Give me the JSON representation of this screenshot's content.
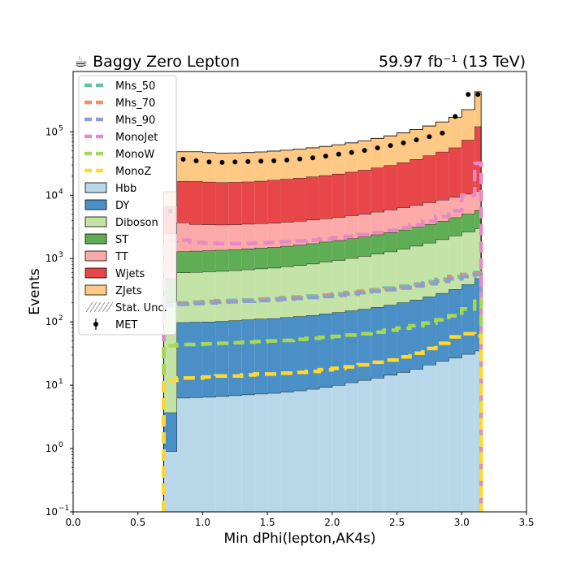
{
  "chart_data": {
    "type": "histogram-stacked",
    "title_left": "☕ Baggy Zero Lepton",
    "title_right": "59.97 fb⁻¹ (13 TeV)",
    "xlabel": "Min dPhi(lepton,AK4s)",
    "ylabel": "Events",
    "xlim": [
      0.0,
      3.5
    ],
    "ylim": [
      0.1,
      900000
    ],
    "yscale": "log",
    "x_ticks": [
      "0.0",
      "0.5",
      "1.0",
      "1.5",
      "2.0",
      "2.5",
      "3.0",
      "3.5"
    ],
    "y_ticks": [
      "10",
      "10",
      "10",
      "10",
      "10",
      "10",
      "10"
    ],
    "y_tick_exponents": [
      "−1",
      "0",
      "1",
      "2",
      "3",
      "4",
      "5"
    ],
    "bin_edges": [
      0.7,
      0.8,
      0.9,
      1.0,
      1.1,
      1.2,
      1.3,
      1.4,
      1.5,
      1.6,
      1.7,
      1.8,
      1.9,
      2.0,
      2.1,
      2.2,
      2.3,
      2.4,
      2.5,
      2.6,
      2.7,
      2.8,
      2.9,
      3.0,
      3.1,
      3.15
    ],
    "stack": [
      {
        "name": "Hbb",
        "color": "#b8d8ea",
        "values": [
          0.9,
          6.3,
          6.4,
          6.5,
          6.7,
          6.9,
          7.1,
          7.3,
          7.5,
          7.8,
          8.2,
          8.7,
          9.3,
          10,
          11,
          12,
          13,
          14.5,
          16,
          18,
          21,
          24,
          27,
          31,
          35
        ]
      },
      {
        "name": "DY",
        "color": "#4a8fc6",
        "values": [
          2.8,
          92,
          93,
          94,
          96,
          98,
          101,
          104,
          106,
          110,
          114,
          118,
          125,
          131,
          139,
          147,
          158,
          170,
          186,
          204,
          228,
          260,
          300,
          360,
          450
        ]
      },
      {
        "name": "Diboson",
        "color": "#c3e4a6",
        "values": [
          200,
          500,
          510,
          520,
          530,
          545,
          560,
          580,
          600,
          630,
          660,
          700,
          750,
          800,
          860,
          930,
          1010,
          1100,
          1220,
          1360,
          1520,
          1720,
          1970,
          2250,
          2500
        ]
      },
      {
        "name": "ST",
        "color": "#5fad55",
        "values": [
          280,
          700,
          710,
          720,
          730,
          740,
          760,
          780,
          800,
          830,
          860,
          900,
          950,
          1000,
          1060,
          1130,
          1210,
          1300,
          1420,
          1550,
          1720,
          1900,
          2150,
          2450,
          2800
        ]
      },
      {
        "name": "TT",
        "color": "#fba9a9",
        "values": [
          2000,
          2400,
          2150,
          2100,
          2050,
          2050,
          2080,
          2100,
          2150,
          2200,
          2280,
          2360,
          2450,
          2560,
          2700,
          2850,
          3050,
          3300,
          3550,
          3850,
          4200,
          4550,
          4950,
          5400,
          5900
        ]
      },
      {
        "name": "Wjets",
        "color": "#e8474a",
        "values": [
          4200,
          13000,
          13200,
          12800,
          12500,
          12600,
          12800,
          13200,
          13700,
          14200,
          14800,
          15500,
          16300,
          17300,
          18500,
          19900,
          21700,
          23800,
          26500,
          30000,
          34500,
          40000,
          47000,
          64000,
          110000
        ]
      },
      {
        "name": "ZJets",
        "color": "#fdc984",
        "values": [
          4700,
          32000,
          32000,
          31000,
          30500,
          30500,
          31000,
          31500,
          32500,
          33500,
          35000,
          36500,
          38500,
          41000,
          44000,
          47500,
          52000,
          57000,
          64000,
          72000,
          82000,
          95000,
          113000,
          150000,
          310000
        ]
      }
    ],
    "signals": [
      {
        "name": "Mhs_50",
        "color": "#66c2a5",
        "values": [
          190,
          200,
          205,
          210,
          215,
          218,
          222,
          228,
          232,
          240,
          247,
          255,
          265,
          278,
          290,
          305,
          322,
          342,
          365,
          395,
          430,
          470,
          520,
          560,
          600
        ]
      },
      {
        "name": "Mhs_70",
        "color": "#fc8d62",
        "values": [
          185,
          195,
          200,
          205,
          210,
          213,
          217,
          222,
          227,
          234,
          240,
          248,
          258,
          270,
          282,
          296,
          312,
          330,
          352,
          380,
          412,
          450,
          495,
          535,
          575
        ]
      },
      {
        "name": "Mhs_90",
        "color": "#8da0cb",
        "values": [
          180,
          190,
          195,
          200,
          205,
          208,
          212,
          217,
          222,
          228,
          235,
          243,
          252,
          263,
          275,
          289,
          305,
          322,
          343,
          370,
          400,
          437,
          480,
          520,
          560
        ]
      },
      {
        "name": "MonoJet",
        "color": "#e78ac3",
        "values": [
          1900,
          1950,
          1800,
          1750,
          1720,
          1720,
          1740,
          1760,
          1800,
          1840,
          1900,
          1960,
          2040,
          2140,
          2250,
          2380,
          2560,
          2780,
          3050,
          3400,
          3900,
          4600,
          5700,
          10000,
          32000
        ]
      },
      {
        "name": "MonoW",
        "color": "#a6d854",
        "values": [
          42,
          44,
          44,
          45,
          46,
          47,
          48,
          49,
          50,
          51,
          53,
          55,
          57,
          59,
          62,
          65,
          69,
          74,
          80,
          87,
          96,
          108,
          125,
          160,
          230
        ]
      },
      {
        "name": "MonoZ",
        "color": "#ffd92f",
        "values": [
          12,
          13,
          13,
          13.5,
          14,
          14,
          14.5,
          15,
          15,
          15.5,
          16,
          16.5,
          17.5,
          18.5,
          19.5,
          21,
          23,
          25,
          28,
          32,
          38,
          46,
          58,
          65,
          60
        ]
      }
    ],
    "data": {
      "name": "MET",
      "x": [
        0.75,
        0.85,
        0.95,
        1.05,
        1.15,
        1.25,
        1.35,
        1.45,
        1.55,
        1.65,
        1.75,
        1.85,
        1.95,
        2.05,
        2.15,
        2.25,
        2.35,
        2.45,
        2.55,
        2.65,
        2.75,
        2.85,
        2.95,
        3.05,
        3.125
      ],
      "y": [
        5600,
        37000,
        35000,
        33500,
        33000,
        33500,
        34000,
        34500,
        35000,
        36000,
        37500,
        39000,
        41500,
        44500,
        47500,
        51000,
        56000,
        61000,
        67000,
        75000,
        84000,
        96000,
        175000,
        390000,
        390000
      ]
    },
    "legend": {
      "position": "upper-left",
      "entries": [
        "Mhs_50",
        "Mhs_70",
        "Mhs_90",
        "MonoJet",
        "MonoW",
        "MonoZ",
        "Hbb",
        "DY",
        "Diboson",
        "ST",
        "TT",
        "Wjets",
        "ZJets",
        "Stat. Unc.",
        "MET"
      ]
    }
  }
}
